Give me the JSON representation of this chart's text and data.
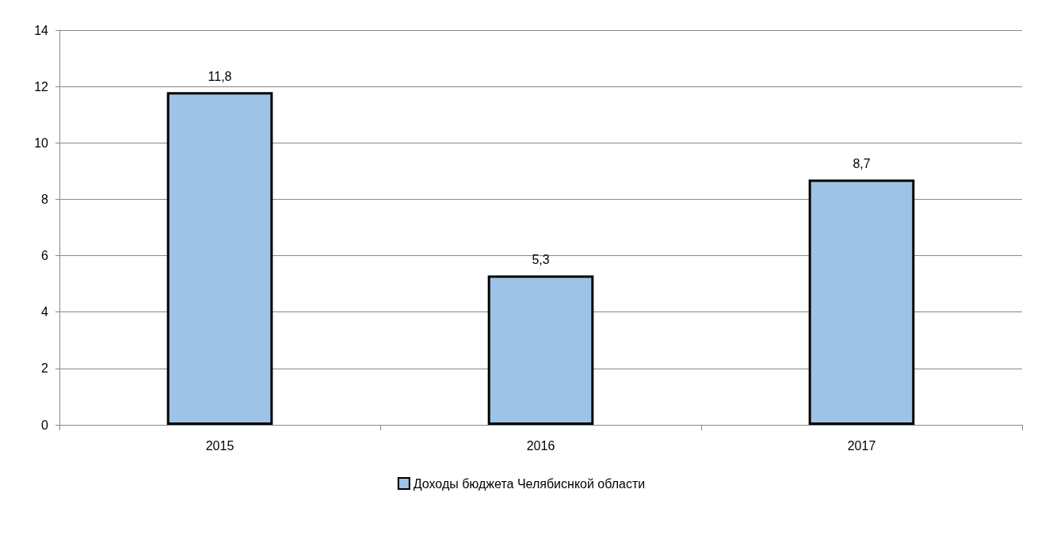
{
  "chart_data": {
    "type": "bar",
    "categories": [
      "2015",
      "2016",
      "2017"
    ],
    "series": [
      {
        "name": "Доходы бюджета Челябиснкой области",
        "color": "#9dc3e6",
        "values": [
          11.8,
          5.3,
          8.7
        ],
        "value_labels": [
          "11,8",
          "5,3",
          "8,7"
        ]
      }
    ],
    "ylim": [
      0,
      14
    ],
    "yticks": [
      0,
      2,
      4,
      6,
      8,
      10,
      12,
      14
    ],
    "grid": "y",
    "legend": "bottom"
  }
}
